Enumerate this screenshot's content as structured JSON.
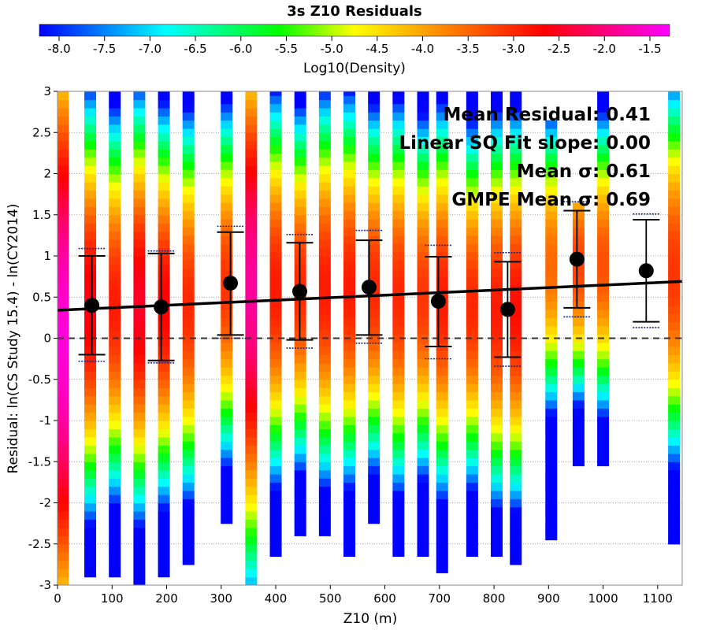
{
  "chart_data": {
    "type": "heatmap",
    "title": "3s Z10 Residuals",
    "xlabel": "Z10 (m)",
    "ylabel": "Residual: ln(CS Study 15.4) - ln(CY2014)",
    "xlim": [
      0,
      1145
    ],
    "ylim": [
      -3,
      3
    ],
    "x_ticks": [
      "0",
      "100",
      "200",
      "300",
      "400",
      "500",
      "600",
      "700",
      "800",
      "900",
      "1000",
      "1100"
    ],
    "y_ticks": [
      "3",
      "2.5",
      "2",
      "1.5",
      "1",
      "0.5",
      "0",
      "-0.5",
      "-1",
      "-1.5",
      "-2",
      "-2.5",
      "-3"
    ],
    "grid": true,
    "colorbar": {
      "label": "Log10(Density)",
      "range": [
        -8.0,
        -1.5
      ],
      "ticks": [
        "-8.0",
        "-7.5",
        "-7.0",
        "-6.5",
        "-6.0",
        "-5.5",
        "-5.0",
        "-4.5",
        "-4.0",
        "-3.5",
        "-3.0",
        "-2.5",
        "-2.0",
        "-1.5"
      ]
    },
    "annotations": [
      "Mean Residual: 0.41",
      "Linear SQ Fit slope: 0.00",
      "Mean σ: 0.61",
      "GMPE Mean σ: 0.69"
    ],
    "fit_line": {
      "x": [
        0,
        1145
      ],
      "y": [
        0.34,
        0.69
      ]
    },
    "zero_line_y": 0,
    "bins": [
      {
        "x": 10,
        "ymin": -3.0,
        "ymax": 3.0,
        "peak": 0.0,
        "peakDensity": -1.7,
        "spread": 2.6
      },
      {
        "x": 60,
        "ymin": -2.9,
        "ymax": 3.0,
        "peak": 0.4,
        "peakDensity": -2.7,
        "spread": 1.6
      },
      {
        "x": 105,
        "ymin": -2.9,
        "ymax": 3.0,
        "peak": 0.4,
        "peakDensity": -3.0,
        "spread": 1.5
      },
      {
        "x": 150,
        "ymin": -3.0,
        "ymax": 3.0,
        "peak": 0.4,
        "peakDensity": -2.6,
        "spread": 1.6
      },
      {
        "x": 195,
        "ymin": -2.9,
        "ymax": 3.0,
        "peak": 0.4,
        "peakDensity": -2.8,
        "spread": 1.5
      },
      {
        "x": 240,
        "ymin": -2.75,
        "ymax": 3.0,
        "peak": 0.4,
        "peakDensity": -3.1,
        "spread": 1.5
      },
      {
        "x": 310,
        "ymin": -2.25,
        "ymax": 3.0,
        "peak": 0.65,
        "peakDensity": -3.2,
        "spread": 1.4
      },
      {
        "x": 355,
        "ymin": -3.0,
        "ymax": 3.0,
        "peak": 0.6,
        "peakDensity": -2.0,
        "spread": 2.2
      },
      {
        "x": 400,
        "ymin": -2.65,
        "ymax": 3.0,
        "peak": 0.6,
        "peakDensity": -3.0,
        "spread": 1.5
      },
      {
        "x": 445,
        "ymin": -2.4,
        "ymax": 3.0,
        "peak": 0.6,
        "peakDensity": -3.1,
        "spread": 1.4
      },
      {
        "x": 490,
        "ymin": -2.4,
        "ymax": 3.0,
        "peak": 0.6,
        "peakDensity": -3.0,
        "spread": 1.5
      },
      {
        "x": 535,
        "ymin": -2.65,
        "ymax": 3.0,
        "peak": 0.6,
        "peakDensity": -3.0,
        "spread": 1.5
      },
      {
        "x": 580,
        "ymin": -2.25,
        "ymax": 3.0,
        "peak": 0.6,
        "peakDensity": -3.1,
        "spread": 1.4
      },
      {
        "x": 625,
        "ymin": -2.65,
        "ymax": 3.0,
        "peak": 0.5,
        "peakDensity": -3.1,
        "spread": 1.5
      },
      {
        "x": 670,
        "ymin": -2.65,
        "ymax": 3.0,
        "peak": 0.5,
        "peakDensity": -3.2,
        "spread": 1.4
      },
      {
        "x": 705,
        "ymin": -2.85,
        "ymax": 3.0,
        "peak": 0.45,
        "peakDensity": -3.0,
        "spread": 1.5
      },
      {
        "x": 760,
        "ymin": -2.65,
        "ymax": 3.0,
        "peak": 0.4,
        "peakDensity": -3.1,
        "spread": 1.4
      },
      {
        "x": 805,
        "ymin": -2.65,
        "ymax": 3.0,
        "peak": 0.35,
        "peakDensity": -3.0,
        "spread": 1.5
      },
      {
        "x": 840,
        "ymin": -2.75,
        "ymax": 3.0,
        "peak": 0.35,
        "peakDensity": -2.9,
        "spread": 1.5
      },
      {
        "x": 905,
        "ymin": -2.45,
        "ymax": 2.65,
        "peak": 0.9,
        "peakDensity": -3.6,
        "spread": 1.2
      },
      {
        "x": 955,
        "ymin": -1.55,
        "ymax": 1.6,
        "peak": 0.9,
        "peakDensity": -3.3,
        "spread": 1.1
      },
      {
        "x": 1000,
        "ymin": -1.55,
        "ymax": 3.0,
        "peak": 0.9,
        "peakDensity": -3.4,
        "spread": 1.2
      },
      {
        "x": 1130,
        "ymin": -2.5,
        "ymax": 3.0,
        "peak": 0.8,
        "peakDensity": -3.2,
        "spread": 1.5
      }
    ],
    "means": [
      {
        "x": 63,
        "mean": 0.4,
        "lo": -0.2,
        "hi": 1.0,
        "lo2": -0.28,
        "hi2": 1.09
      },
      {
        "x": 190,
        "mean": 0.38,
        "lo": -0.27,
        "hi": 1.03,
        "lo2": -0.3,
        "hi2": 1.06
      },
      {
        "x": 317,
        "mean": 0.67,
        "lo": 0.04,
        "hi": 1.29,
        "lo2": 0.0,
        "hi2": 1.36
      },
      {
        "x": 444,
        "mean": 0.57,
        "lo": -0.02,
        "hi": 1.16,
        "lo2": -0.12,
        "hi2": 1.26
      },
      {
        "x": 571,
        "mean": 0.62,
        "lo": 0.04,
        "hi": 1.19,
        "lo2": -0.06,
        "hi2": 1.31
      },
      {
        "x": 698,
        "mean": 0.45,
        "lo": -0.1,
        "hi": 0.99,
        "lo2": -0.25,
        "hi2": 1.13
      },
      {
        "x": 825,
        "mean": 0.35,
        "lo": -0.23,
        "hi": 0.93,
        "lo2": -0.34,
        "hi2": 1.04
      },
      {
        "x": 952,
        "mean": 0.96,
        "lo": 0.37,
        "hi": 1.55,
        "lo2": 0.26,
        "hi2": 1.66
      },
      {
        "x": 1079,
        "mean": 0.82,
        "lo": 0.2,
        "hi": 1.44,
        "lo2": 0.13,
        "hi2": 1.51
      }
    ]
  }
}
